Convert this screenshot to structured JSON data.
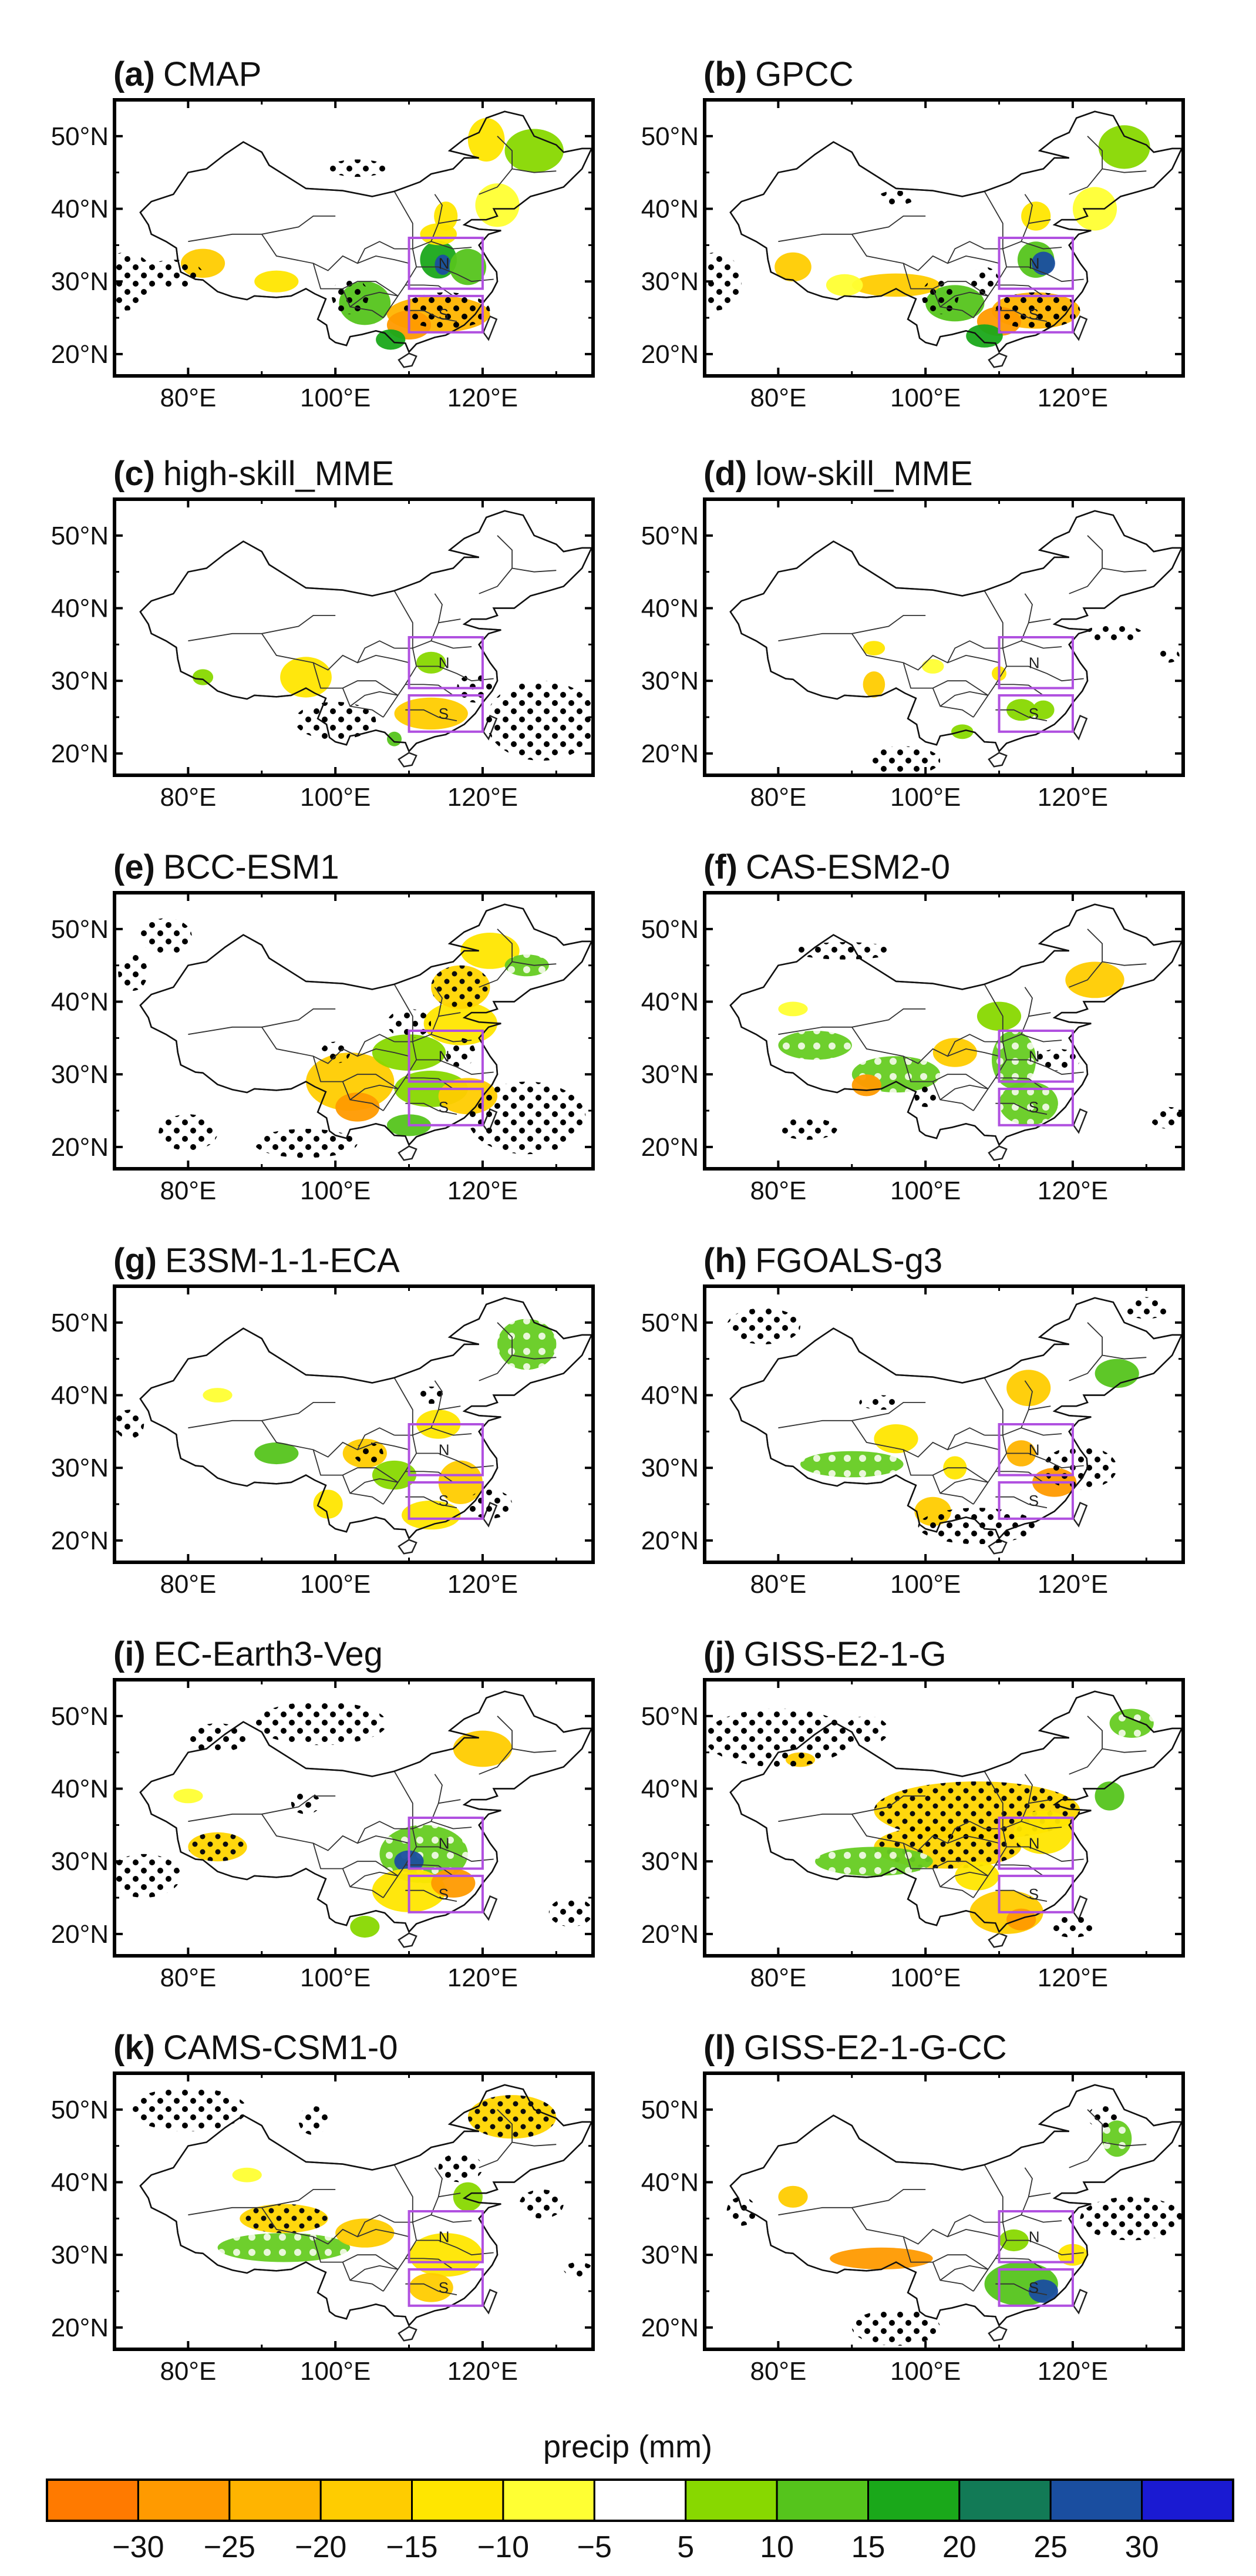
{
  "figure": {
    "panels": [
      {
        "label": "(a)",
        "name": "CMAP"
      },
      {
        "label": "(b)",
        "name": "GPCC"
      },
      {
        "label": "(c)",
        "name": "high-skill_MME"
      },
      {
        "label": "(d)",
        "name": "low-skill_MME"
      },
      {
        "label": "(e)",
        "name": "BCC-ESM1"
      },
      {
        "label": "(f)",
        "name": "CAS-ESM2-0"
      },
      {
        "label": "(g)",
        "name": "E3SM-1-1-ECA"
      },
      {
        "label": "(h)",
        "name": "FGOALS-g3"
      },
      {
        "label": "(i)",
        "name": "EC-Earth3-Veg"
      },
      {
        "label": "(j)",
        "name": "GISS-E2-1-G"
      },
      {
        "label": "(k)",
        "name": "CAMS-CSM1-0"
      },
      {
        "label": "(l)",
        "name": "GISS-E2-1-G-CC"
      }
    ],
    "lat_ticks": [
      "50°N",
      "40°N",
      "30°N",
      "20°N"
    ],
    "lon_ticks": [
      "80°E",
      "100°E",
      "120°E"
    ],
    "region_labels": [
      "N",
      "S"
    ],
    "colorbar": {
      "title": "precip (mm)",
      "ticks": [
        "−30",
        "−25",
        "−20",
        "−15",
        "−10",
        "−5",
        "5",
        "10",
        "15",
        "20",
        "25",
        "30"
      ],
      "colors": [
        "#ff7a00",
        "#ff9a00",
        "#ffb400",
        "#ffcc00",
        "#ffe600",
        "#ffff33",
        "#ffffff",
        "#88d800",
        "#55c41c",
        "#1aa81a",
        "#127a56",
        "#1a4ea0",
        "#1a1ad2"
      ]
    },
    "dot_color": "#000000",
    "region_box_color": "#b050e0"
  }
}
